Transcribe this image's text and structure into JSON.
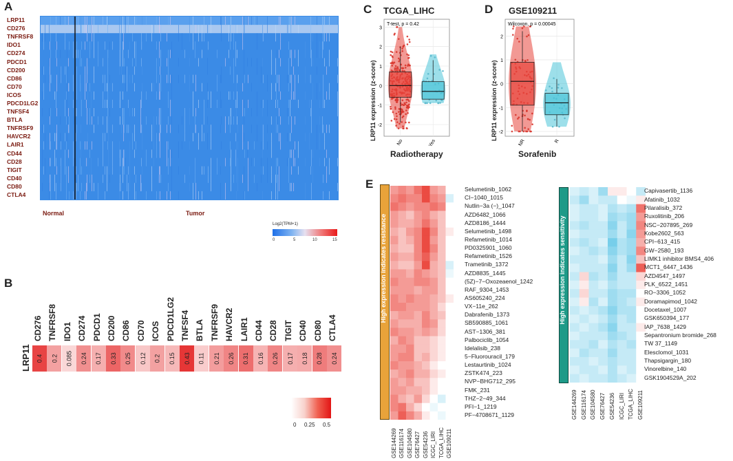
{
  "panels": {
    "a": "A",
    "b": "B",
    "c": "C",
    "d": "D",
    "e": "E"
  },
  "panelA": {
    "genes": [
      "LRP11",
      "CD276",
      "TNFRSF8",
      "IDO1",
      "CD274",
      "PDCD1",
      "CD200",
      "CD86",
      "CD70",
      "ICOS",
      "PDCD1LG2",
      "TNFSF4",
      "BTLA",
      "TNFRSF9",
      "HAVCR2",
      "LAIR1",
      "CD44",
      "CD28",
      "TIGIT",
      "CD40",
      "CD80",
      "CTLA4"
    ],
    "group_normal": "Normal",
    "group_tumor": "Tumor",
    "legend_title": "Log2(TPM+1)",
    "legend_ticks": [
      "0",
      "5",
      "10",
      "15"
    ],
    "colors": {
      "low": "#1e70e8",
      "mid": "#e6e0f0",
      "high": "#e81a1a"
    }
  },
  "panelB": {
    "row_label": "LRP11",
    "legend_ticks": [
      "0",
      "0.25",
      "0.5"
    ]
  },
  "panelC": {
    "title": "TCGA_LIHC",
    "stat": "T-test, p = 0.42",
    "ylabel": "LRP11 expression (z-score)",
    "xlabel": "Radiotherapy",
    "groups": [
      "No",
      "Yes"
    ],
    "yticks": [
      "3",
      "2",
      "1",
      "0",
      "-1",
      "-2"
    ],
    "colors": {
      "g1": "#e8453c",
      "g2": "#4cc4d8"
    }
  },
  "panelD": {
    "title": "GSE109211",
    "stat": "Wilcoxon, p = 0.00045",
    "ylabel": "LRP11 expression (z-score)",
    "xlabel": "Sorafenib",
    "groups": [
      "NR",
      "R"
    ],
    "yticks": [
      "2",
      "1",
      "0",
      "-1",
      "-2"
    ]
  },
  "panelE": {
    "left_side_label": "High expression indicates resistance",
    "right_side_label": "High expression indicates sensitivity",
    "columns": [
      "GSE144269",
      "GSE116174",
      "GSE104580",
      "GSE76427",
      "GSE54236",
      "ICGC_LIRI",
      "TCGA_LIHC",
      "GSE109211"
    ],
    "resistance_drugs": [
      "Selumetinib_1062",
      "CI−1040_1015",
      "Nutlin−3a (−)_1047",
      "AZD6482_1066",
      "AZD8186_1444",
      "Selumetinib_1498",
      "Refametinib_1014",
      "PD0325901_1060",
      "Refametinib_1526",
      "Trametinib_1372",
      "AZD8835_1445",
      "(5Z)−7−Oxozeaenol_1242",
      "RAF_9304_1453",
      "AS605240_224",
      "VX−11e_262",
      "Dabrafenib_1373",
      "SB590885_1061",
      "AST−1306_381",
      "Palbociclib_1054",
      "Idelalisib_238",
      "5−Fluorouracil_179",
      "Lestaurtinib_1024",
      "ZSTK474_223",
      "NVP−BHG712_295",
      "FMK_231",
      "THZ−2−49_344",
      "PFI−1_1219",
      "PF−4708671_1129"
    ],
    "sensitivity_drugs": [
      "Capivasertib_1136",
      "Afatinib_1032",
      "Pilaralisib_372",
      "Ruxolitinib_206",
      "NSC−207895_269",
      "Kobe2602_563",
      "CPI−613_415",
      "GW−2580_193",
      "LIMK1 inhibitor BMS4_406",
      "MCT1_6447_1436",
      "AZD4547_1497",
      "PLK_6522_1451",
      "RO−3306_1052",
      "Doramapimod_1042",
      "Docetaxel_1007",
      "GSK650394_177",
      "IAP_7638_1429",
      "Sepantronium bromide_268",
      "TW 37_1149",
      "Elesclomol_1031",
      "Thapsigargin_180",
      "Vinorelbine_140",
      "GSK1904529A_202"
    ]
  },
  "chart_data": [
    {
      "type": "heatmap",
      "title": "",
      "rows": [
        "LRP11",
        "CD276",
        "TNFRSF8",
        "IDO1",
        "CD274",
        "PDCD1",
        "CD200",
        "CD86",
        "CD70",
        "ICOS",
        "PDCD1LG2",
        "TNFSF4",
        "BTLA",
        "TNFRSF9",
        "HAVCR2",
        "LAIR1",
        "CD44",
        "CD28",
        "TIGIT",
        "CD40",
        "CD80",
        "CTLA4"
      ],
      "groups": [
        "Normal",
        "Tumor"
      ],
      "colorbar": {
        "label": "Log2(TPM+1)",
        "range": [
          0,
          15
        ]
      }
    },
    {
      "type": "heatmap",
      "rows": [
        "LRP11"
      ],
      "categories": [
        "CD276",
        "TNFRSF8",
        "IDO1",
        "CD274",
        "PDCD1",
        "CD200",
        "CD86",
        "CD70",
        "ICOS",
        "PDCD1LG2",
        "TNFSF4",
        "BTLA",
        "TNFRSF9",
        "HAVCR2",
        "LAIR1",
        "CD44",
        "CD28",
        "TIGIT",
        "CD40",
        "CD80",
        "CTLA4"
      ],
      "values": [
        0.4,
        0.2,
        0.085,
        0.24,
        0.17,
        0.33,
        0.25,
        0.12,
        0.2,
        0.15,
        0.43,
        0.11,
        0.21,
        0.26,
        0.31,
        0.16,
        0.26,
        0.17,
        0.18,
        0.28,
        0.24
      ],
      "colorbar": {
        "range": [
          0,
          0.5
        ]
      }
    },
    {
      "type": "box",
      "title": "TCGA_LIHC",
      "xlabel": "Radiotherapy",
      "ylabel": "LRP11 expression (z-score)",
      "categories": [
        "No",
        "Yes"
      ],
      "ylim": [
        -2.6,
        3.4
      ],
      "series": [
        {
          "name": "No",
          "q1": -0.6,
          "median": 0.0,
          "q3": 0.7,
          "whisker_low": -1.9,
          "whisker_high": 2.0,
          "range": [
            -2.2,
            3.0
          ]
        },
        {
          "name": "Yes",
          "q1": -0.7,
          "median": -0.3,
          "q3": 0.2,
          "whisker_low": -0.7,
          "whisker_high": 1.3,
          "range": [
            -0.9,
            1.6
          ]
        }
      ],
      "annotation": "T-test, p = 0.42"
    },
    {
      "type": "box",
      "title": "GSE109211",
      "xlabel": "Sorafenib",
      "ylabel": "LRP11 expression (z-score)",
      "categories": [
        "NR",
        "R"
      ],
      "ylim": [
        -2.2,
        2.7
      ],
      "series": [
        {
          "name": "NR",
          "q1": -0.9,
          "median": 0.1,
          "q3": 0.9,
          "whisker_low": -2.0,
          "whisker_high": 2.2,
          "range": [
            -2.0,
            2.4
          ]
        },
        {
          "name": "R",
          "q1": -1.3,
          "median": -0.8,
          "q3": -0.4,
          "whisker_low": -1.8,
          "whisker_high": 0.2,
          "range": [
            -1.8,
            0.9
          ]
        }
      ],
      "annotation": "Wilcoxon, p = 0.00045"
    },
    {
      "type": "heatmap",
      "title": "High expression indicates resistance",
      "rows": [
        "Selumetinib_1062",
        "CI−1040_1015",
        "Nutlin−3a (−)_1047",
        "AZD6482_1066",
        "AZD8186_1444",
        "Selumetinib_1498",
        "Refametinib_1014",
        "PD0325901_1060",
        "Refametinib_1526",
        "Trametinib_1372",
        "AZD8835_1445",
        "(5Z)−7−Oxozeaenol_1242",
        "RAF_9304_1453",
        "AS605240_224",
        "VX−11e_262",
        "Dabrafenib_1373",
        "SB590885_1061",
        "AST−1306_381",
        "Palbociclib_1054",
        "Idelalisib_238",
        "5−Fluorouracil_179",
        "Lestaurtinib_1024",
        "ZSTK474_223",
        "NVP−BHG712_295",
        "FMK_231",
        "THZ−2−49_344",
        "PFI−1_1219",
        "PF−4708671_1129"
      ],
      "columns": [
        "GSE144269",
        "GSE116174",
        "GSE104580",
        "GSE76427",
        "GSE54236",
        "ICGC_LIRI",
        "TCGA_LIHC",
        "GSE109211"
      ],
      "values": [
        [
          0.5,
          0.6,
          0.5,
          0.7,
          0.9,
          0.5,
          0.4,
          0.0
        ],
        [
          0.6,
          0.7,
          0.6,
          0.6,
          0.9,
          0.6,
          0.5,
          -0.2
        ],
        [
          0.7,
          0.6,
          0.5,
          0.6,
          0.6,
          0.7,
          0.6,
          0.0
        ],
        [
          0.5,
          0.4,
          0.3,
          0.5,
          0.6,
          0.4,
          0.3,
          0.0
        ],
        [
          0.5,
          0.4,
          0.4,
          0.5,
          0.7,
          0.5,
          0.3,
          0.0
        ],
        [
          0.4,
          0.3,
          0.5,
          0.6,
          0.9,
          0.6,
          0.3,
          0.1
        ],
        [
          0.5,
          0.3,
          0.4,
          0.6,
          0.9,
          0.5,
          0.3,
          0.0
        ],
        [
          0.4,
          0.3,
          0.3,
          0.6,
          0.9,
          0.6,
          0.3,
          0.0
        ],
        [
          0.5,
          0.4,
          0.4,
          0.6,
          0.8,
          0.5,
          0.3,
          0.0
        ],
        [
          0.4,
          0.3,
          0.3,
          0.5,
          0.9,
          0.4,
          0.3,
          -0.2
        ],
        [
          0.5,
          0.5,
          0.4,
          0.6,
          0.5,
          0.4,
          0.3,
          -0.1
        ],
        [
          0.6,
          0.5,
          0.5,
          0.6,
          0.6,
          0.5,
          0.3,
          0.0
        ],
        [
          0.5,
          0.5,
          0.5,
          0.4,
          0.5,
          0.5,
          0.3,
          0.0
        ],
        [
          0.6,
          0.5,
          0.6,
          0.5,
          0.5,
          0.4,
          0.3,
          0.1
        ],
        [
          0.6,
          0.6,
          0.5,
          0.5,
          0.5,
          0.4,
          0.2,
          0.0
        ],
        [
          0.4,
          0.5,
          0.5,
          0.4,
          0.6,
          0.4,
          0.3,
          0.0
        ],
        [
          0.5,
          0.4,
          0.4,
          0.4,
          0.6,
          0.5,
          0.2,
          0.0
        ],
        [
          0.6,
          0.5,
          0.5,
          0.4,
          0.5,
          0.4,
          0.2,
          0.0
        ],
        [
          0.4,
          0.6,
          0.5,
          0.3,
          0.3,
          0.2,
          0.1,
          0.0
        ],
        [
          0.5,
          0.5,
          0.6,
          0.3,
          0.3,
          0.2,
          0.1,
          0.0
        ],
        [
          0.5,
          0.6,
          0.6,
          0.3,
          0.4,
          0.2,
          0.1,
          0.0
        ],
        [
          0.6,
          0.5,
          0.5,
          0.4,
          0.3,
          0.1,
          0.0,
          0.0
        ],
        [
          0.4,
          0.5,
          0.6,
          0.4,
          0.4,
          0.2,
          0.1,
          0.0
        ],
        [
          0.5,
          0.4,
          0.5,
          0.3,
          0.3,
          0.1,
          0.0,
          0.0
        ],
        [
          0.5,
          0.5,
          0.4,
          0.4,
          0.3,
          0.1,
          0.0,
          0.0
        ],
        [
          0.6,
          0.4,
          0.3,
          0.5,
          0.2,
          0.0,
          -0.2,
          0.0
        ],
        [
          0.6,
          0.7,
          0.4,
          0.2,
          0.0,
          -0.1,
          0.0,
          0.0
        ],
        [
          0.5,
          0.8,
          0.6,
          0.4,
          0.1,
          0.0,
          -0.1,
          0.0
        ]
      ],
      "colorbar": {
        "range": [
          -1,
          1
        ]
      }
    },
    {
      "type": "heatmap",
      "title": "High expression indicates sensitivity",
      "rows": [
        "Capivasertib_1136",
        "Afatinib_1032",
        "Pilaralisib_372",
        "Ruxolitinib_206",
        "NSC−207895_269",
        "Kobe2602_563",
        "CPI−613_415",
        "GW−2580_193",
        "LIMK1 inhibitor BMS4_406",
        "MCT1_6447_1436",
        "AZD4547_1497",
        "PLK_6522_1451",
        "RO−3306_1052",
        "Doramapimod_1042",
        "Docetaxel_1007",
        "GSK650394_177",
        "IAP_7638_1429",
        "Sepantronium bromide_268",
        "TW 37_1149",
        "Elesclomol_1031",
        "Thapsigargin_180",
        "Vinorelbine_140",
        "GSK1904529A_202"
      ],
      "columns": [
        "GSE144269",
        "GSE116174",
        "GSE104580",
        "GSE76427",
        "GSE54236",
        "ICGC_LIRI",
        "TCGA_LIHC",
        "GSE109211"
      ],
      "values": [
        [
          -0.2,
          -0.3,
          -0.2,
          -0.5,
          0.1,
          0.1,
          0.0,
          -0.3
        ],
        [
          -0.3,
          -0.5,
          -0.2,
          -0.3,
          -0.3,
          0.0,
          -0.1,
          0.1
        ],
        [
          -0.2,
          -0.3,
          -0.3,
          -0.2,
          -0.4,
          -0.3,
          -0.4,
          0.7
        ],
        [
          -0.2,
          -0.3,
          -0.3,
          -0.2,
          -0.5,
          -0.4,
          -0.5,
          0.5
        ],
        [
          -0.3,
          -0.4,
          -0.3,
          -0.3,
          -0.6,
          -0.3,
          -0.5,
          0.6
        ],
        [
          -0.2,
          -0.3,
          -0.3,
          -0.3,
          -0.5,
          -0.3,
          -0.6,
          0.5
        ],
        [
          -0.3,
          -0.4,
          -0.3,
          -0.2,
          -0.7,
          -0.4,
          -0.5,
          0.4
        ],
        [
          -0.2,
          -0.3,
          -0.4,
          -0.3,
          -0.6,
          -0.4,
          -0.5,
          0.6
        ],
        [
          -0.3,
          -0.3,
          -0.3,
          -0.2,
          -0.5,
          -0.3,
          -0.6,
          0.3
        ],
        [
          -0.2,
          -0.3,
          -0.3,
          -0.3,
          -0.6,
          -0.3,
          -0.5,
          0.8
        ],
        [
          -0.3,
          0.2,
          -0.4,
          -0.3,
          -0.5,
          -0.3,
          -0.3,
          0.2
        ],
        [
          -0.2,
          0.1,
          -0.3,
          -0.2,
          -0.4,
          -0.3,
          -0.3,
          0.1
        ],
        [
          -0.3,
          0.2,
          -0.3,
          -0.3,
          -0.5,
          -0.4,
          -0.4,
          0.0
        ],
        [
          -0.2,
          0.1,
          -0.4,
          -0.2,
          -0.5,
          -0.4,
          -0.3,
          0.1
        ],
        [
          -0.3,
          -0.2,
          -0.3,
          -0.4,
          -0.6,
          -0.4,
          -0.4,
          0.0
        ],
        [
          -0.2,
          -0.3,
          -0.2,
          -0.3,
          -0.5,
          -0.3,
          -0.4,
          0.0
        ],
        [
          -0.3,
          -0.2,
          -0.3,
          -0.4,
          -0.6,
          -0.3,
          -0.3,
          0.1
        ],
        [
          -0.2,
          -0.3,
          -0.3,
          -0.3,
          -0.5,
          -0.4,
          -0.3,
          0.0
        ],
        [
          -0.3,
          -0.3,
          -0.4,
          -0.2,
          -0.4,
          -0.3,
          -0.4,
          0.0
        ],
        [
          -0.2,
          -0.4,
          -0.3,
          -0.3,
          -0.5,
          -0.3,
          -0.3,
          0.0
        ],
        [
          -0.3,
          -0.3,
          -0.2,
          -0.3,
          -0.4,
          -0.3,
          -0.3,
          0.0
        ],
        [
          -0.2,
          -0.3,
          -0.3,
          -0.2,
          -0.4,
          -0.2,
          -0.3,
          0.0
        ],
        [
          -0.3,
          -0.2,
          -0.3,
          -0.3,
          -0.4,
          -0.3,
          -0.2,
          0.0
        ]
      ],
      "colorbar": {
        "range": [
          -1,
          1
        ]
      }
    }
  ]
}
